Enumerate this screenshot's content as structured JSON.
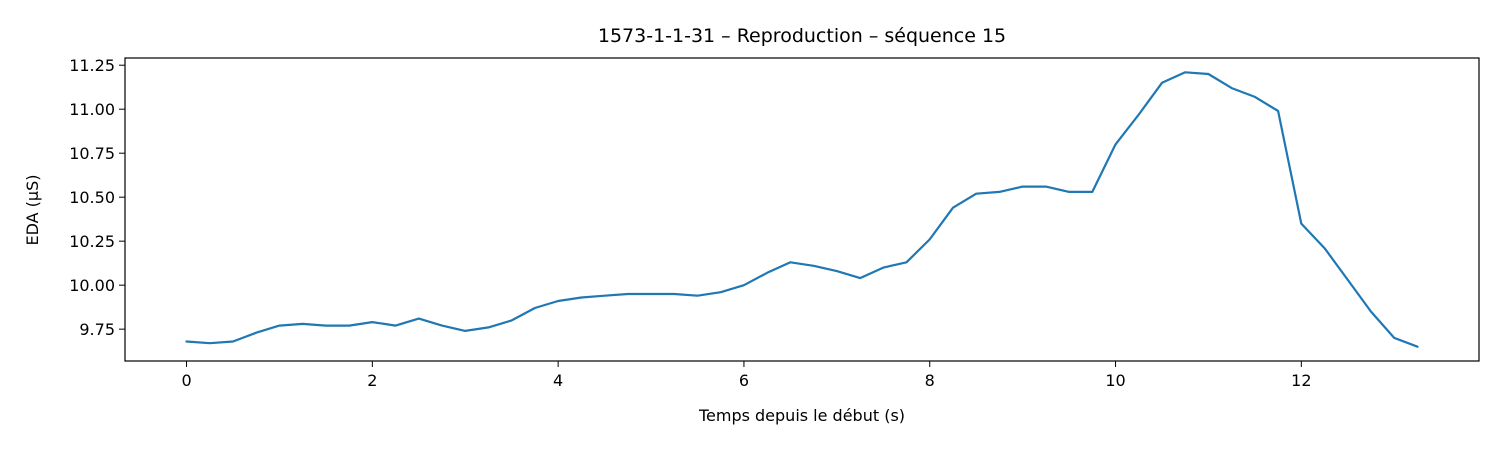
{
  "chart_data": {
    "type": "line",
    "title": "1573-1-1-31 – Reproduction – séquence 15",
    "xlabel": "Temps depuis le début (s)",
    "ylabel": "EDA (µS)",
    "xlim": [
      -0.6625,
      13.9125
    ],
    "ylim": [
      9.569,
      11.291
    ],
    "grid": false,
    "x_ticks": [
      0,
      2,
      4,
      6,
      8,
      10,
      12
    ],
    "x_tick_labels": [
      "0",
      "2",
      "4",
      "6",
      "8",
      "10",
      "12"
    ],
    "y_ticks": [
      9.75,
      10.0,
      10.25,
      10.5,
      10.75,
      11.0,
      11.25
    ],
    "y_tick_labels": [
      "9.75",
      "10.00",
      "10.25",
      "10.50",
      "10.75",
      "11.00",
      "11.25"
    ],
    "series": [
      {
        "color": "#1f77b4",
        "x": [
          0,
          0.25,
          0.5,
          0.75,
          1.0,
          1.25,
          1.5,
          1.75,
          2.0,
          2.25,
          2.5,
          2.75,
          3.0,
          3.25,
          3.5,
          3.75,
          4.0,
          4.25,
          4.5,
          4.75,
          5.0,
          5.25,
          5.5,
          5.75,
          6.0,
          6.25,
          6.5,
          6.75,
          7.0,
          7.25,
          7.5,
          7.75,
          8.0,
          8.25,
          8.5,
          8.75,
          9.0,
          9.25,
          9.5,
          9.75,
          10.0,
          10.25,
          10.5,
          10.75,
          11.0,
          11.25,
          11.5,
          11.75,
          12.0,
          12.25,
          12.5,
          12.75,
          13.0,
          13.25
        ],
        "y": [
          9.68,
          9.67,
          9.68,
          9.73,
          9.77,
          9.78,
          9.77,
          9.77,
          9.79,
          9.77,
          9.81,
          9.77,
          9.74,
          9.76,
          9.8,
          9.87,
          9.91,
          9.93,
          9.94,
          9.95,
          9.95,
          9.95,
          9.94,
          9.96,
          10.0,
          10.07,
          10.13,
          10.11,
          10.08,
          10.04,
          10.1,
          10.13,
          10.26,
          10.44,
          10.52,
          10.53,
          10.56,
          10.56,
          10.53,
          10.53,
          10.8,
          10.97,
          11.15,
          11.21,
          11.2,
          11.12,
          11.07,
          10.99,
          10.35,
          10.21,
          10.03,
          9.85,
          9.7,
          9.65
        ]
      }
    ]
  }
}
